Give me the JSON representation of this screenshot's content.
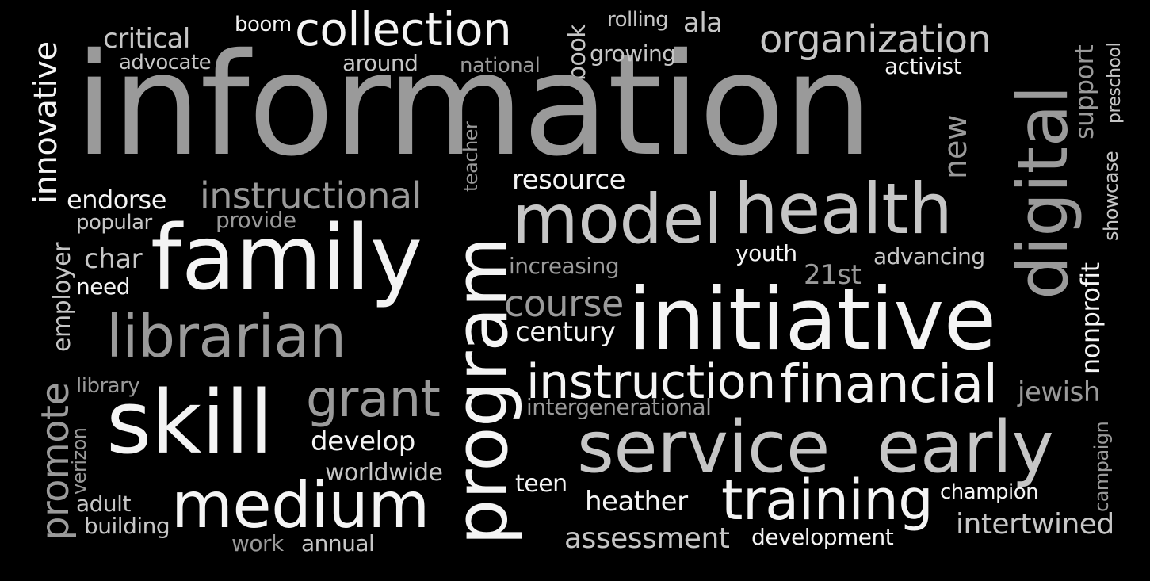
{
  "words": {
    "information": "information",
    "innovative": "innovative",
    "critical": "critical",
    "advocate": "advocate",
    "boom": "boom",
    "collection": "collection",
    "around": "around",
    "national": "national",
    "book": "book",
    "rolling": "rolling",
    "ala": "ala",
    "growing": "growing",
    "organization": "organization",
    "activist": "activist",
    "digital": "digital",
    "support": "support",
    "preschool": "preschool",
    "showcase": "showcase",
    "teacher": "teacher",
    "new": "new",
    "endorse": "endorse",
    "instructional": "instructional",
    "resource": "resource",
    "popular": "popular",
    "provide": "provide",
    "model": "model",
    "health": "health",
    "employer": "employer",
    "char": "char",
    "family": "family",
    "program": "program",
    "increasing": "increasing",
    "youth": "youth",
    "advancing": "advancing",
    "need": "need",
    "21st": "21st",
    "nonprofit": "nonprofit",
    "librarian": "librarian",
    "course": "course",
    "century": "century",
    "initiative": "initiative",
    "promote": "promote",
    "library": "library",
    "instruction": "instruction",
    "financial": "financial",
    "jewish": "jewish",
    "grant": "grant",
    "intergenerational": "intergenerational",
    "skill": "skill",
    "verizon": "verizon",
    "develop": "develop",
    "service": "service",
    "early": "early",
    "campaign": "campaign",
    "worldwide": "worldwide",
    "adult": "adult",
    "teen": "teen",
    "medium": "medium",
    "heather": "heather",
    "training": "training",
    "champion": "champion",
    "building": "building",
    "intertwined": "intertwined",
    "work": "work",
    "annual": "annual",
    "assessment": "assessment",
    "development": "development"
  },
  "colors": {
    "background": "#000000",
    "gray": "#9a9a9a",
    "light_gray": "#c6c6c6",
    "white": "#f4f4f4"
  }
}
